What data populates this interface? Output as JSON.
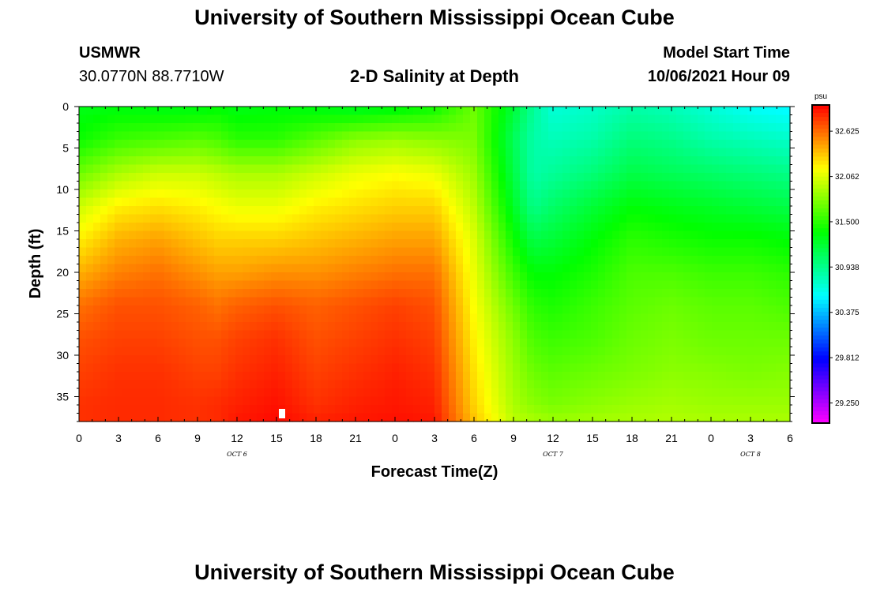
{
  "header": {
    "title": "University of Southern Mississippi Ocean Cube",
    "station_name": "USMWR",
    "coordinates": "30.0770N  88.7710W",
    "plot_title": "2-D Salinity at Depth",
    "model_start_label": "Model Start Time",
    "model_start_value": "10/06/2021 Hour 09"
  },
  "footer": {
    "title": "University of Southern Mississippi Ocean Cube"
  },
  "chart_data": {
    "type": "heatmap",
    "title": "2-D Salinity at Depth",
    "xlabel": "Forecast Time(Z)",
    "ylabel": "Depth (ft)",
    "x_tick_labels": [
      "0",
      "3",
      "6",
      "9",
      "12",
      "15",
      "18",
      "21",
      "0",
      "3",
      "6",
      "9",
      "12",
      "15",
      "18",
      "21",
      "0",
      "3",
      "6"
    ],
    "x_date_labels": [
      {
        "label": "OCT 6",
        "tick_index": 4
      },
      {
        "label": "OCT 7",
        "tick_index": 12
      },
      {
        "label": "OCT 8",
        "tick_index": 17
      }
    ],
    "x_range_hours": [
      0,
      54
    ],
    "y_tick_labels": [
      "0",
      "5",
      "10",
      "15",
      "20",
      "25",
      "30",
      "35"
    ],
    "y_range_ft": [
      0,
      38
    ],
    "colorbar": {
      "unit": "psu",
      "range": [
        29.0,
        32.95
      ],
      "tick_labels": [
        "32.625",
        "32.062",
        "31.500",
        "30.938",
        "30.375",
        "29.812",
        "29.250"
      ],
      "tick_values": [
        32.625,
        32.062,
        31.5,
        30.938,
        30.375,
        29.812,
        29.25
      ]
    },
    "depth_levels_ft": [
      0,
      4,
      8,
      12,
      16,
      20,
      24,
      28,
      32,
      36,
      38
    ],
    "time_hours": [
      0,
      3,
      6,
      9,
      10.5,
      12,
      15,
      18,
      21,
      24,
      27,
      30,
      33,
      34.5,
      36,
      39,
      42,
      45,
      48,
      51,
      54
    ],
    "salinity_psu": [
      [
        31.3,
        31.32,
        31.3,
        31.3,
        31.35,
        31.3,
        31.33,
        31.3,
        31.25,
        31.3,
        31.4,
        31.7,
        31.2,
        30.9,
        30.7,
        30.75,
        30.85,
        30.8,
        30.7,
        30.6,
        30.55
      ],
      [
        31.4,
        31.55,
        31.6,
        31.65,
        31.6,
        31.5,
        31.5,
        31.65,
        31.8,
        31.85,
        31.8,
        31.75,
        31.1,
        30.85,
        30.8,
        30.85,
        31.0,
        30.95,
        30.85,
        30.8,
        30.75
      ],
      [
        31.7,
        31.9,
        32.0,
        32.0,
        31.95,
        31.9,
        31.9,
        32.0,
        32.1,
        32.15,
        32.1,
        31.85,
        31.15,
        30.85,
        30.9,
        31.0,
        31.15,
        31.1,
        31.05,
        31.0,
        30.95
      ],
      [
        32.0,
        32.2,
        32.25,
        32.2,
        32.15,
        32.1,
        32.1,
        32.2,
        32.25,
        32.3,
        32.3,
        31.95,
        31.25,
        30.95,
        31.05,
        31.2,
        31.35,
        31.3,
        31.25,
        31.2,
        31.15
      ],
      [
        32.2,
        32.4,
        32.45,
        32.35,
        32.3,
        32.3,
        32.3,
        32.35,
        32.4,
        32.45,
        32.45,
        32.05,
        31.4,
        31.15,
        31.2,
        31.35,
        31.5,
        31.45,
        31.4,
        31.4,
        31.35
      ],
      [
        32.4,
        32.55,
        32.6,
        32.5,
        32.45,
        32.45,
        32.5,
        32.5,
        32.55,
        32.6,
        32.6,
        32.1,
        31.55,
        31.35,
        31.35,
        31.45,
        31.6,
        31.6,
        31.55,
        31.55,
        31.5
      ],
      [
        32.6,
        32.7,
        32.7,
        32.65,
        32.6,
        32.65,
        32.7,
        32.65,
        32.7,
        32.75,
        32.7,
        32.15,
        31.7,
        31.5,
        31.45,
        31.55,
        31.65,
        31.7,
        31.65,
        31.65,
        31.6
      ],
      [
        32.7,
        32.75,
        32.75,
        32.7,
        32.7,
        32.75,
        32.8,
        32.7,
        32.75,
        32.8,
        32.75,
        32.2,
        31.8,
        31.6,
        31.55,
        31.6,
        31.7,
        31.75,
        31.7,
        31.7,
        31.7
      ],
      [
        32.75,
        32.8,
        32.8,
        32.75,
        32.75,
        32.8,
        32.85,
        32.75,
        32.8,
        32.85,
        32.8,
        32.25,
        31.85,
        31.7,
        31.65,
        31.7,
        31.75,
        31.8,
        31.78,
        31.75,
        31.78
      ],
      [
        32.8,
        32.82,
        32.82,
        32.8,
        32.82,
        32.85,
        32.9,
        32.8,
        32.85,
        32.88,
        32.85,
        32.3,
        31.9,
        31.8,
        31.75,
        31.8,
        31.85,
        31.88,
        31.85,
        31.85,
        31.85
      ],
      [
        32.8,
        32.82,
        32.82,
        32.8,
        32.82,
        32.88,
        32.92,
        32.85,
        32.88,
        32.9,
        32.88,
        32.35,
        31.95,
        31.9,
        31.85,
        31.88,
        31.9,
        31.92,
        31.9,
        31.9,
        31.9
      ]
    ]
  }
}
